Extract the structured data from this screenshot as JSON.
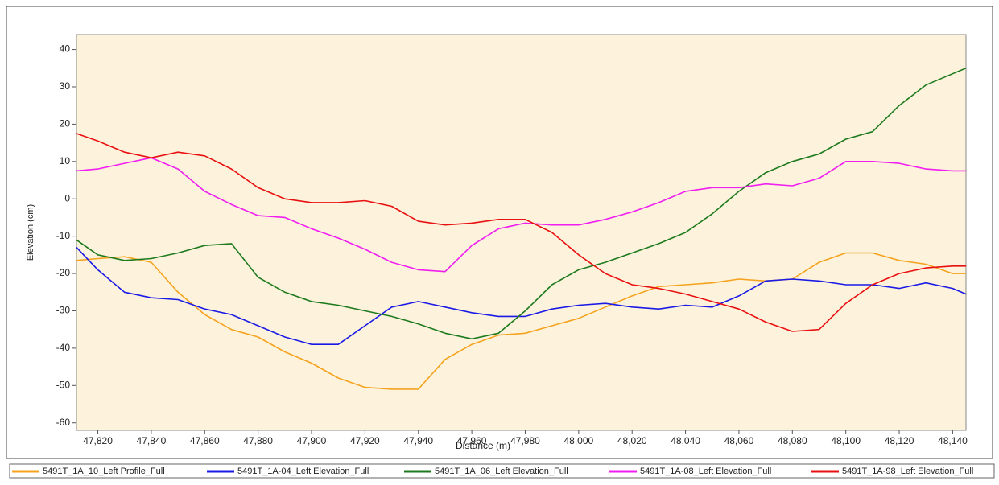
{
  "chart_data": {
    "type": "line",
    "x_label": "Distance (m)",
    "y_label": "Elevation (cm)",
    "x": [
      47812,
      47820,
      47830,
      47840,
      47850,
      47860,
      47870,
      47880,
      47890,
      47900,
      47910,
      47920,
      47930,
      47940,
      47950,
      47960,
      47970,
      47980,
      47990,
      48000,
      48010,
      48020,
      48030,
      48040,
      48050,
      48060,
      48070,
      48080,
      48090,
      48100,
      48110,
      48120,
      48130,
      48140,
      48145
    ],
    "xlim": [
      47812,
      48145
    ],
    "xticks": [
      {
        "value": 47820,
        "label": "47,820"
      },
      {
        "value": 47840,
        "label": "47,840"
      },
      {
        "value": 47860,
        "label": "47,860"
      },
      {
        "value": 47880,
        "label": "47,880"
      },
      {
        "value": 47900,
        "label": "47,900"
      },
      {
        "value": 47920,
        "label": "47,920"
      },
      {
        "value": 47940,
        "label": "47,940"
      },
      {
        "value": 47960,
        "label": "47,960"
      },
      {
        "value": 47980,
        "label": "47,980"
      },
      {
        "value": 48000,
        "label": "48,000"
      },
      {
        "value": 48020,
        "label": "48,020"
      },
      {
        "value": 48040,
        "label": "48,040"
      },
      {
        "value": 48060,
        "label": "48,060"
      },
      {
        "value": 48080,
        "label": "48,080"
      },
      {
        "value": 48100,
        "label": "48,100"
      },
      {
        "value": 48120,
        "label": "48,120"
      },
      {
        "value": 48140,
        "label": "48,140"
      }
    ],
    "ylim": [
      -62,
      44
    ],
    "yticks": [
      -60,
      -50,
      -40,
      -30,
      -20,
      -10,
      0,
      10,
      20,
      30,
      40
    ],
    "series": [
      {
        "name": "5491T_1A_10_Left Profile_Full",
        "color": "#f5a21e",
        "values": [
          -16.5,
          -16,
          -15.5,
          -17,
          -25,
          -31,
          -35,
          -37,
          -41,
          -44,
          -48,
          -50.5,
          -51,
          -51,
          -43,
          -39,
          -36.5,
          -36,
          -34,
          -32,
          -29,
          -26,
          -23.5,
          -23,
          -22.5,
          -21.5,
          -22,
          -21.5,
          -17,
          -14.5,
          -14.5,
          -16.5,
          -17.5,
          -20,
          -20
        ]
      },
      {
        "name": "5491T_1A-04_Left Elevation_Full",
        "color": "#1a1ae6",
        "values": [
          -13,
          -19,
          -25,
          -26.5,
          -27,
          -29.5,
          -31,
          -34,
          -37,
          -39,
          -39,
          -34,
          -29,
          -27.5,
          -29,
          -30.5,
          -31.5,
          -31.5,
          -29.5,
          -28.5,
          -28,
          -29,
          -29.5,
          -28.5,
          -29,
          -26,
          -22,
          -21.5,
          -22,
          -23,
          -23,
          -24,
          -22.5,
          -24,
          -25.5
        ]
      },
      {
        "name": "5491T_1A_06_Left Elevation_Full",
        "color": "#1e7a1e",
        "values": [
          -11,
          -15,
          -16.5,
          -16,
          -14.5,
          -12.5,
          -12,
          -21,
          -25,
          -27.5,
          -28.5,
          -30,
          -31.5,
          -33.5,
          -36,
          -37.5,
          -36,
          -30,
          -23,
          -19,
          -17,
          -14.5,
          -12,
          -9,
          -4,
          2,
          7,
          10,
          12,
          16,
          18,
          25,
          30.5,
          33.5,
          35
        ]
      },
      {
        "name": "5491T_1A-08_Left Elevation_Full",
        "color": "#f01ef0",
        "values": [
          7.5,
          8,
          9.5,
          11,
          8,
          2,
          -1.5,
          -4.5,
          -5,
          -8,
          -10.5,
          -13.5,
          -17,
          -19,
          -19.5,
          -12.5,
          -8,
          -6.5,
          -7,
          -7,
          -5.5,
          -3.5,
          -1,
          2,
          3,
          3,
          4,
          3.5,
          5.5,
          10,
          10,
          9.5,
          8,
          7.5,
          7.5
        ]
      },
      {
        "name": "5491T_1A-98_Left Elevation_Full",
        "color": "#e81010",
        "values": [
          17.5,
          15.5,
          12.5,
          11,
          12.5,
          11.5,
          8,
          3,
          0,
          -1,
          -1,
          -0.5,
          -2,
          -6,
          -7,
          -6.5,
          -5.5,
          -5.5,
          -9,
          -15,
          -20,
          -23,
          -24,
          -25.5,
          -27.5,
          -29.5,
          -33,
          -35.5,
          -35,
          -28,
          -23,
          -20,
          -18.5,
          -18,
          -18
        ]
      }
    ]
  }
}
